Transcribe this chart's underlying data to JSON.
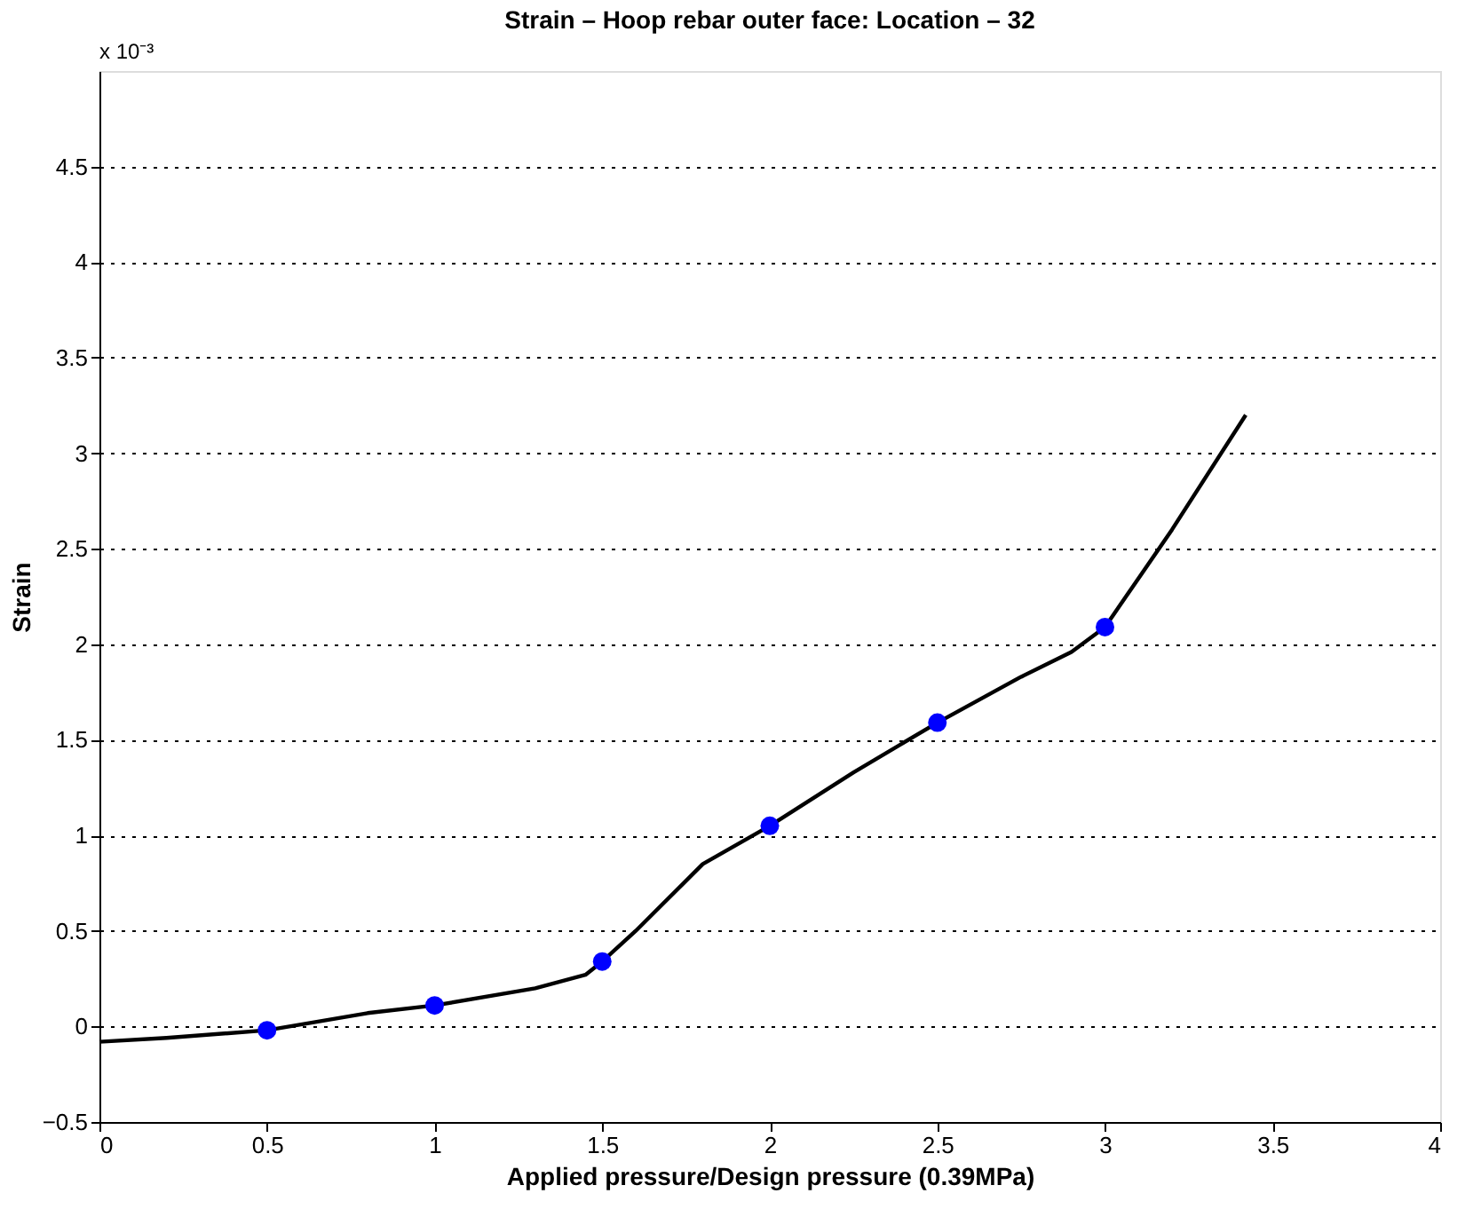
{
  "chart_data": {
    "type": "line",
    "title": "Strain – Hoop rebar outer face: Location – 32",
    "xlabel": "Applied pressure/Design pressure (0.39MPa)",
    "ylabel": "Strain",
    "annotations": [
      "x 10⁻³"
    ],
    "series": [
      {
        "color": "#000000",
        "marker": "none",
        "x": [
          0,
          0.2,
          0.5,
          0.8,
          1.0,
          1.3,
          1.45,
          1.5,
          1.6,
          1.8,
          2.0,
          2.25,
          2.5,
          2.75,
          2.9,
          3.0,
          3.2,
          3.42
        ],
        "values": [
          -0.08,
          -0.06,
          -0.02,
          0.07,
          0.11,
          0.2,
          0.27,
          0.34,
          0.5,
          0.85,
          1.05,
          1.33,
          1.59,
          1.83,
          1.96,
          2.09,
          2.6,
          3.2
        ]
      },
      {
        "type": "scatter",
        "color": "#0000ff",
        "marker": "circle",
        "x": [
          0.5,
          1.0,
          1.5,
          2.0,
          2.5,
          3.0
        ],
        "values": [
          -0.02,
          0.11,
          0.34,
          1.05,
          1.59,
          2.09
        ]
      }
    ],
    "xlim": [
      0,
      4
    ],
    "xticks": [
      0,
      0.5,
      1,
      1.5,
      2,
      2.5,
      3,
      3.5,
      4
    ],
    "ylim": [
      -0.5,
      5
    ],
    "yticks": [
      -0.5,
      0,
      0.5,
      1,
      1.5,
      2,
      2.5,
      3,
      3.5,
      4,
      4.5
    ],
    "grid": "y"
  }
}
